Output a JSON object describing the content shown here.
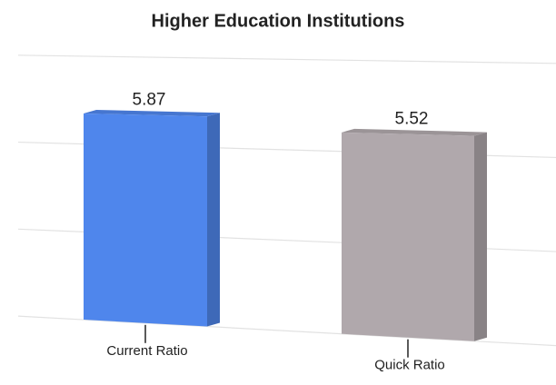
{
  "chart_data": {
    "type": "bar3d",
    "title": "Higher Education Institutions",
    "categories": [
      "Current Ratio",
      "Quick Ratio"
    ],
    "values": [
      5.87,
      5.52
    ],
    "colors": [
      "#4f86ec",
      "#b0a8ac"
    ],
    "ylim": [
      0,
      7.5
    ],
    "yticks": [
      0,
      2.5,
      5,
      7.5
    ],
    "grid": true
  }
}
